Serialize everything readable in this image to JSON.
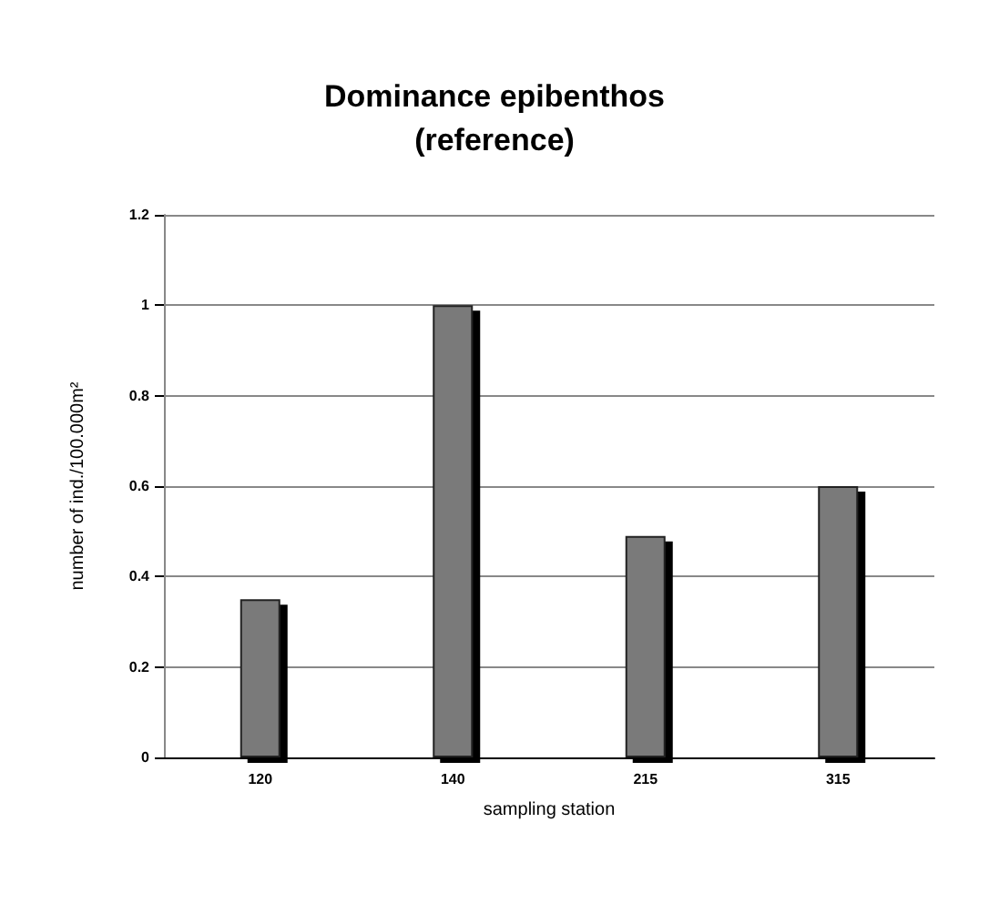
{
  "chart_data": {
    "type": "bar",
    "title": "Dominance epibenthos\n(reference)",
    "xlabel": "sampling station",
    "ylabel": "number of ind./100.000m²",
    "categories": [
      "120",
      "140",
      "215",
      "315"
    ],
    "values": [
      0.35,
      1.0,
      0.49,
      0.6
    ],
    "color": "#7a7a7a",
    "ylim": [
      0,
      1.2
    ],
    "yticks": [
      0,
      0.2,
      0.4,
      0.6,
      0.8,
      1,
      1.2
    ],
    "grid": "y"
  }
}
